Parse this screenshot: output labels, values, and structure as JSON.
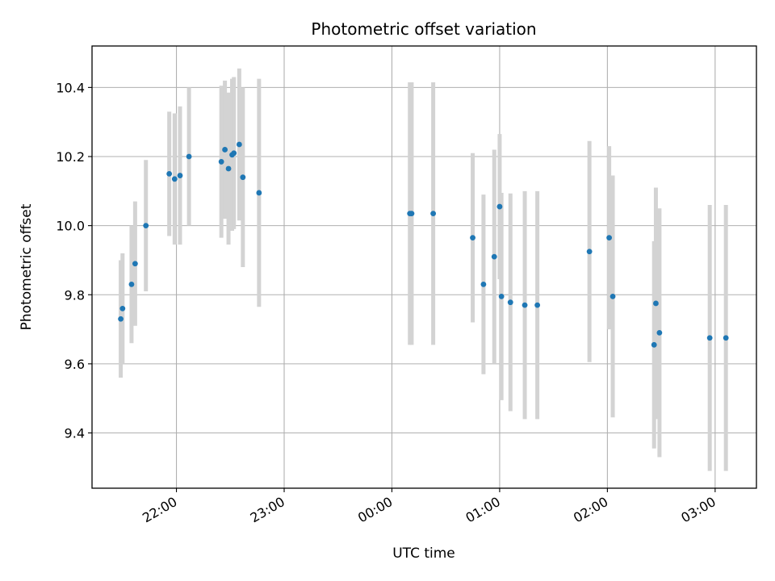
{
  "chart_data": {
    "type": "scatter",
    "title": "Photometric offset variation",
    "xlabel": "UTC time",
    "ylabel": "Photometric offset",
    "grid": true,
    "xlim": [
      "21:13",
      "03:23"
    ],
    "ylim": [
      9.24,
      10.52
    ],
    "x_ticks": [
      "22:00",
      "23:00",
      "00:00",
      "01:00",
      "02:00",
      "03:00"
    ],
    "y_ticks": [
      9.4,
      9.6,
      9.8,
      10.0,
      10.2,
      10.4
    ],
    "y_tick_labels": [
      "9.4",
      "9.6",
      "9.8",
      "10.0",
      "10.2",
      "10.4"
    ],
    "colors": {
      "marker": "#1f77b4",
      "errorbar": "#d3d3d3",
      "grid": "#b0b0b0"
    },
    "points": [
      {
        "x": "21:29",
        "y": 9.73,
        "err": 0.17
      },
      {
        "x": "21:30",
        "y": 9.76,
        "err": 0.16
      },
      {
        "x": "21:35",
        "y": 9.83,
        "err": 0.17
      },
      {
        "x": "21:37",
        "y": 9.89,
        "err": 0.18
      },
      {
        "x": "21:43",
        "y": 10.0,
        "err": 0.19
      },
      {
        "x": "21:56",
        "y": 10.15,
        "err": 0.18
      },
      {
        "x": "21:59",
        "y": 10.135,
        "err": 0.19
      },
      {
        "x": "22:02",
        "y": 10.145,
        "err": 0.2
      },
      {
        "x": "22:07",
        "y": 10.2,
        "err": 0.2
      },
      {
        "x": "22:25",
        "y": 10.185,
        "err": 0.22
      },
      {
        "x": "22:27",
        "y": 10.22,
        "err": 0.2
      },
      {
        "x": "22:29",
        "y": 10.165,
        "err": 0.22
      },
      {
        "x": "22:31",
        "y": 10.205,
        "err": 0.22
      },
      {
        "x": "22:32",
        "y": 10.21,
        "err": 0.22
      },
      {
        "x": "22:35",
        "y": 10.235,
        "err": 0.22
      },
      {
        "x": "22:37",
        "y": 10.14,
        "err": 0.26
      },
      {
        "x": "22:46",
        "y": 10.095,
        "err": 0.33
      },
      {
        "x": "00:10",
        "y": 10.035,
        "err": 0.38
      },
      {
        "x": "00:11",
        "y": 10.035,
        "err": 0.38
      },
      {
        "x": "00:23",
        "y": 10.035,
        "err": 0.38
      },
      {
        "x": "00:45",
        "y": 9.965,
        "err": 0.245
      },
      {
        "x": "00:51",
        "y": 9.83,
        "err": 0.26
      },
      {
        "x": "00:57",
        "y": 9.91,
        "err": 0.31
      },
      {
        "x": "01:00",
        "y": 10.055,
        "err": 0.21
      },
      {
        "x": "01:01",
        "y": 9.795,
        "err": 0.3
      },
      {
        "x": "01:06",
        "y": 9.778,
        "err": 0.315
      },
      {
        "x": "01:14",
        "y": 9.77,
        "err": 0.33
      },
      {
        "x": "01:21",
        "y": 9.77,
        "err": 0.33
      },
      {
        "x": "01:50",
        "y": 9.925,
        "err": 0.32
      },
      {
        "x": "02:01",
        "y": 9.965,
        "err": 0.265
      },
      {
        "x": "02:03",
        "y": 9.795,
        "err": 0.35
      },
      {
        "x": "02:26",
        "y": 9.655,
        "err": 0.3
      },
      {
        "x": "02:27",
        "y": 9.775,
        "err": 0.335
      },
      {
        "x": "02:29",
        "y": 9.69,
        "err": 0.36
      },
      {
        "x": "02:57",
        "y": 9.675,
        "err": 0.385
      },
      {
        "x": "03:06",
        "y": 9.675,
        "err": 0.385
      }
    ]
  }
}
